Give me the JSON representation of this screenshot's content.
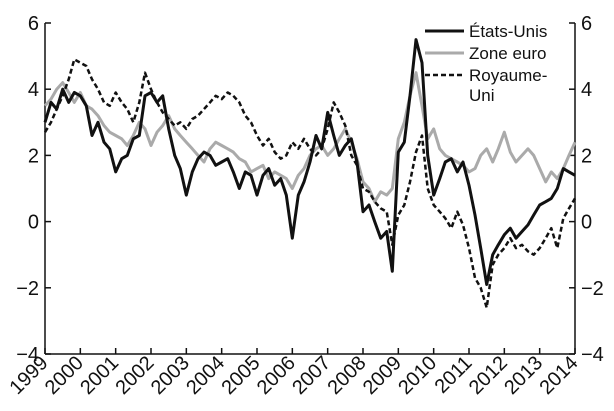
{
  "chart_data": {
    "type": "line",
    "title": "",
    "xlabel": "",
    "ylabel": "",
    "ylim": [
      -4,
      6
    ],
    "y_ticks": [
      "−4",
      "−2",
      "0",
      "2",
      "4",
      "6"
    ],
    "x_ticks": [
      "1999",
      "2000",
      "2001",
      "2002",
      "2003",
      "2004",
      "2005",
      "2006",
      "2007",
      "2008",
      "2009",
      "2010",
      "2011",
      "2012",
      "2013",
      "2014"
    ],
    "x_range": [
      1999,
      2014
    ],
    "grid": false,
    "legend_position": "top-right",
    "series": [
      {
        "name": "États-Unis",
        "color": "#111111",
        "dash": "solid",
        "x": [
          1999.0,
          1999.17,
          1999.33,
          1999.5,
          1999.67,
          1999.83,
          2000.0,
          2000.17,
          2000.33,
          2000.5,
          2000.67,
          2000.83,
          2001.0,
          2001.17,
          2001.33,
          2001.5,
          2001.67,
          2001.83,
          2002.0,
          2002.17,
          2002.33,
          2002.5,
          2002.67,
          2002.83,
          2003.0,
          2003.17,
          2003.33,
          2003.5,
          2003.67,
          2003.83,
          2004.0,
          2004.17,
          2004.33,
          2004.5,
          2004.67,
          2004.83,
          2005.0,
          2005.17,
          2005.33,
          2005.5,
          2005.67,
          2005.83,
          2006.0,
          2006.17,
          2006.33,
          2006.5,
          2006.67,
          2006.83,
          2007.0,
          2007.17,
          2007.33,
          2007.5,
          2007.67,
          2007.83,
          2008.0,
          2008.17,
          2008.33,
          2008.5,
          2008.67,
          2008.83,
          2009.0,
          2009.17,
          2009.33,
          2009.5,
          2009.67,
          2009.83,
          2010.0,
          2010.17,
          2010.33,
          2010.5,
          2010.67,
          2010.83,
          2011.0,
          2011.17,
          2011.33,
          2011.5,
          2011.67,
          2011.83,
          2012.0,
          2012.17,
          2012.33,
          2012.5,
          2012.67,
          2012.83,
          2013.0,
          2013.17,
          2013.33,
          2013.5,
          2013.67,
          2013.83,
          2014.0
        ],
        "values": [
          3.0,
          3.6,
          3.4,
          4.0,
          3.6,
          3.9,
          3.8,
          3.5,
          2.6,
          3.0,
          2.4,
          2.2,
          1.5,
          1.9,
          2.0,
          2.5,
          2.6,
          3.8,
          3.9,
          3.6,
          3.8,
          2.8,
          2.0,
          1.6,
          0.8,
          1.5,
          1.9,
          2.1,
          2.0,
          1.7,
          1.8,
          1.9,
          1.5,
          1.0,
          1.5,
          1.4,
          0.8,
          1.4,
          1.6,
          1.1,
          1.3,
          0.8,
          -0.5,
          0.8,
          1.2,
          1.8,
          2.6,
          2.2,
          3.3,
          2.6,
          2.0,
          2.3,
          2.5,
          1.8,
          0.3,
          0.5,
          0.0,
          -0.5,
          -0.3,
          -1.5,
          2.1,
          2.4,
          3.8,
          5.5,
          4.8,
          2.0,
          0.8,
          1.3,
          1.8,
          1.9,
          1.5,
          1.8,
          1.1,
          0.2,
          -0.8,
          -1.9,
          -1.0,
          -0.7,
          -0.4,
          -0.2,
          -0.5,
          -0.3,
          -0.1,
          0.2,
          0.5,
          0.6,
          0.7,
          1.0,
          1.6,
          1.5,
          1.4
        ]
      },
      {
        "name": "Zone euro",
        "color": "#aaaaaa",
        "dash": "solid",
        "x": [
          1999.0,
          1999.17,
          1999.33,
          1999.5,
          1999.67,
          1999.83,
          2000.0,
          2000.17,
          2000.33,
          2000.5,
          2000.67,
          2000.83,
          2001.0,
          2001.17,
          2001.33,
          2001.5,
          2001.67,
          2001.83,
          2002.0,
          2002.17,
          2002.33,
          2002.5,
          2002.67,
          2002.83,
          2003.0,
          2003.17,
          2003.33,
          2003.5,
          2003.67,
          2003.83,
          2004.0,
          2004.17,
          2004.33,
          2004.5,
          2004.67,
          2004.83,
          2005.0,
          2005.17,
          2005.33,
          2005.5,
          2005.67,
          2005.83,
          2006.0,
          2006.17,
          2006.33,
          2006.5,
          2006.67,
          2006.83,
          2007.0,
          2007.17,
          2007.33,
          2007.5,
          2007.67,
          2007.83,
          2008.0,
          2008.17,
          2008.33,
          2008.5,
          2008.67,
          2008.83,
          2009.0,
          2009.17,
          2009.33,
          2009.5,
          2009.67,
          2009.83,
          2010.0,
          2010.17,
          2010.33,
          2010.5,
          2010.67,
          2010.83,
          2011.0,
          2011.17,
          2011.33,
          2011.5,
          2011.67,
          2011.83,
          2012.0,
          2012.17,
          2012.33,
          2012.5,
          2012.67,
          2012.83,
          2013.0,
          2013.17,
          2013.33,
          2013.5,
          2013.67,
          2013.83,
          2014.0
        ],
        "values": [
          3.5,
          3.7,
          4.0,
          4.2,
          3.9,
          3.6,
          3.9,
          3.5,
          3.4,
          3.2,
          2.9,
          2.7,
          2.6,
          2.5,
          2.3,
          2.6,
          3.0,
          2.8,
          2.3,
          2.7,
          2.9,
          3.2,
          2.8,
          2.6,
          2.4,
          2.2,
          2.0,
          1.8,
          2.2,
          2.4,
          2.3,
          2.2,
          2.1,
          1.9,
          1.8,
          1.5,
          1.6,
          1.7,
          1.3,
          1.5,
          1.4,
          1.3,
          1.0,
          1.4,
          1.6,
          2.0,
          2.2,
          2.3,
          2.0,
          2.2,
          2.5,
          2.8,
          2.4,
          1.9,
          1.2,
          1.0,
          0.6,
          0.9,
          0.8,
          1.0,
          2.5,
          3.0,
          3.8,
          4.5,
          3.5,
          2.5,
          2.8,
          2.2,
          2.0,
          1.9,
          1.8,
          1.7,
          1.5,
          1.6,
          2.0,
          2.2,
          1.8,
          2.2,
          2.7,
          2.1,
          1.8,
          2.0,
          2.2,
          2.0,
          1.6,
          1.2,
          1.5,
          1.3,
          1.6,
          2.0,
          2.4
        ]
      },
      {
        "name": "Royaume-Uni",
        "color": "#111111",
        "dash": "dashed",
        "x": [
          1999.0,
          1999.17,
          1999.33,
          1999.5,
          1999.67,
          1999.83,
          2000.0,
          2000.17,
          2000.33,
          2000.5,
          2000.67,
          2000.83,
          2001.0,
          2001.17,
          2001.33,
          2001.5,
          2001.67,
          2001.83,
          2002.0,
          2002.17,
          2002.33,
          2002.5,
          2002.67,
          2002.83,
          2003.0,
          2003.17,
          2003.33,
          2003.5,
          2003.67,
          2003.83,
          2004.0,
          2004.17,
          2004.33,
          2004.5,
          2004.67,
          2004.83,
          2005.0,
          2005.17,
          2005.33,
          2005.5,
          2005.67,
          2005.83,
          2006.0,
          2006.17,
          2006.33,
          2006.5,
          2006.67,
          2006.83,
          2007.0,
          2007.17,
          2007.33,
          2007.5,
          2007.67,
          2007.83,
          2008.0,
          2008.17,
          2008.33,
          2008.5,
          2008.67,
          2008.83,
          2009.0,
          2009.17,
          2009.33,
          2009.5,
          2009.67,
          2009.83,
          2010.0,
          2010.17,
          2010.33,
          2010.5,
          2010.67,
          2010.83,
          2011.0,
          2011.17,
          2011.33,
          2011.5,
          2011.67,
          2011.83,
          2012.0,
          2012.17,
          2012.33,
          2012.5,
          2012.67,
          2012.83,
          2013.0,
          2013.17,
          2013.33,
          2013.5,
          2013.67,
          2013.83,
          2014.0
        ],
        "values": [
          2.7,
          3.0,
          3.4,
          3.8,
          4.3,
          4.9,
          4.8,
          4.7,
          4.3,
          4.0,
          3.6,
          3.5,
          3.9,
          3.6,
          3.4,
          3.0,
          3.6,
          4.5,
          4.0,
          3.6,
          3.3,
          3.1,
          2.9,
          3.0,
          2.8,
          3.1,
          3.2,
          3.4,
          3.6,
          3.8,
          3.7,
          3.9,
          3.8,
          3.6,
          3.2,
          3.0,
          2.6,
          2.3,
          2.5,
          2.1,
          1.9,
          2.0,
          2.4,
          2.2,
          2.5,
          2.2,
          2.0,
          2.2,
          2.8,
          3.6,
          3.3,
          2.9,
          2.0,
          1.7,
          1.0,
          0.9,
          0.6,
          0.4,
          0.3,
          -0.7,
          0.2,
          0.5,
          1.2,
          2.1,
          2.6,
          1.0,
          0.5,
          0.3,
          0.1,
          -0.2,
          0.3,
          -0.1,
          -0.8,
          -1.7,
          -2.0,
          -2.6,
          -1.3,
          -1.0,
          -0.8,
          -0.5,
          -0.8,
          -0.7,
          -0.9,
          -1.0,
          -0.8,
          -0.5,
          -0.2,
          -0.8,
          0.1,
          0.4,
          0.7
        ]
      }
    ]
  }
}
